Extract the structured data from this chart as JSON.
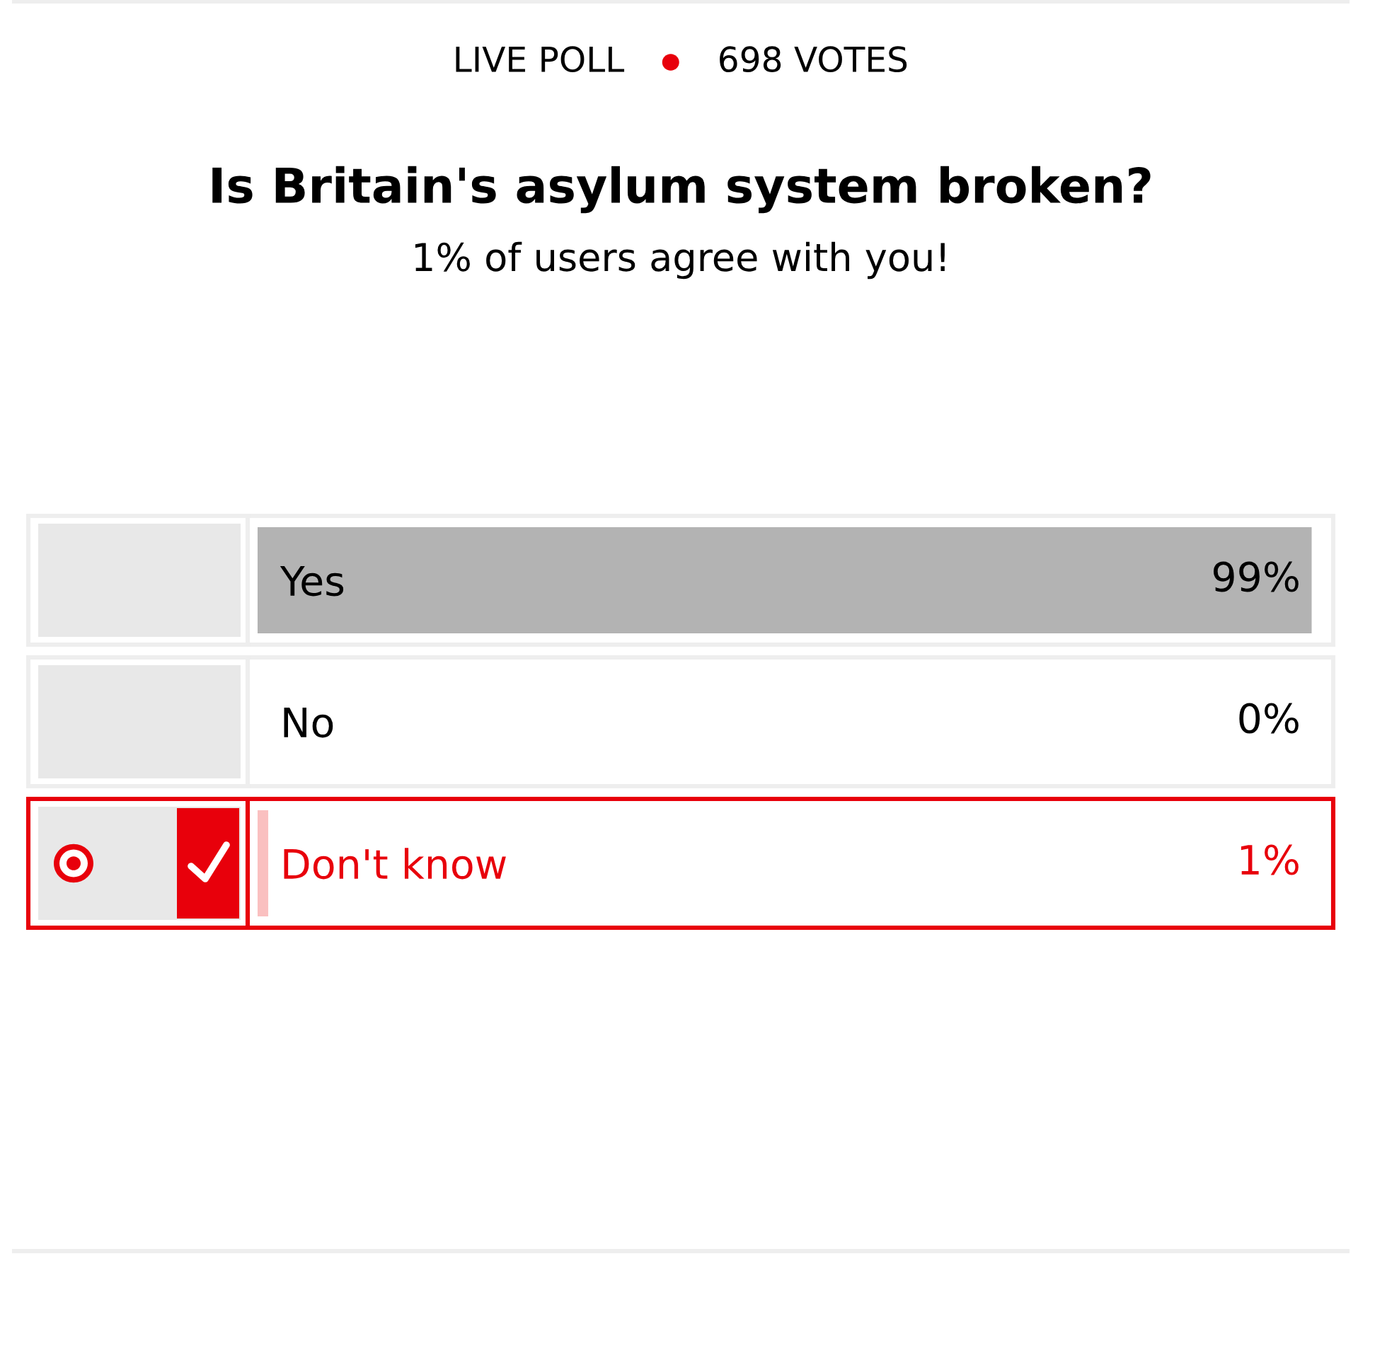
{
  "chart_data": {
    "type": "bar",
    "orientation": "horizontal",
    "title": "Is Britain's asylum system broken?",
    "subtitle": "1% of users agree with you!",
    "annotations": [
      "LIVE POLL",
      "698 VOTES"
    ],
    "categories": [
      "Yes",
      "No",
      "Don't know"
    ],
    "values": [
      99,
      0,
      1
    ],
    "colors": [
      "#b3b3b3",
      "#b3b3b3",
      "#fac0c0"
    ],
    "value_labels": [
      "99%",
      "0%",
      "1%"
    ],
    "tick_labels": "y"
  }
}
